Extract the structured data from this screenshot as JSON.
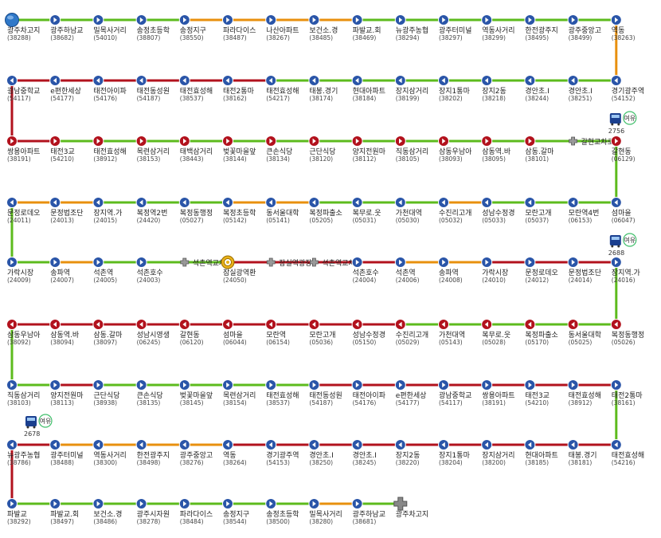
{
  "colors": {
    "green": "#5dbb1d",
    "orange": "#e8900e",
    "red": "#b2121d",
    "blue": "#1a64c8",
    "nav": "#2a55a8"
  },
  "buses": [
    {
      "number": "2756",
      "badge": "여유"
    },
    {
      "number": "2688",
      "badge": "여유"
    },
    {
      "number": "2678",
      "badge": "여유"
    }
  ],
  "rows": [
    {
      "direction": "right",
      "stops": [
        {
          "name": "광주차고지",
          "id": "(38288)",
          "type": "start"
        },
        {
          "name": "광주하남교",
          "id": "(38682)"
        },
        {
          "name": "밀목사거리",
          "id": "(54010)"
        },
        {
          "name": "송정초등학",
          "id": "(38807)"
        },
        {
          "name": "송정지구",
          "id": "(38550)"
        },
        {
          "name": "파라다이스",
          "id": "(38487)"
        },
        {
          "name": "나산아파트",
          "id": "(38267)"
        },
        {
          "name": "보건소.경",
          "id": "(38485)"
        },
        {
          "name": "파발교.회",
          "id": "(38469)"
        },
        {
          "name": "뉴광주농협",
          "id": "(38294)"
        },
        {
          "name": "광주터미널",
          "id": "(38297)"
        },
        {
          "name": "역동사거리",
          "id": "(38299)"
        },
        {
          "name": "한전광주지",
          "id": "(38495)"
        },
        {
          "name": "광주중앙고",
          "id": "(38499)"
        },
        {
          "name": "역동",
          "id": "(38263)"
        }
      ]
    },
    {
      "direction": "left",
      "stops": [
        {
          "name": "경기광주역",
          "id": "(54152)"
        },
        {
          "name": "경안초.I",
          "id": "(38251)"
        },
        {
          "name": "경안초.I",
          "id": "(38244)"
        },
        {
          "name": "장지2동",
          "id": "(38218)"
        },
        {
          "name": "장지1통마",
          "id": "(38202)"
        },
        {
          "name": "장지삼거리",
          "id": "(38199)"
        },
        {
          "name": "현대아파트",
          "id": "(38184)"
        },
        {
          "name": "태봉.경기",
          "id": "(38174)"
        },
        {
          "name": "태전효성해",
          "id": "(54217)"
        },
        {
          "name": "태전2통마",
          "id": "(38162)"
        },
        {
          "name": "태전효성해",
          "id": "(38537)"
        },
        {
          "name": "태전동성원",
          "id": "(54187)"
        },
        {
          "name": "태전아이파",
          "id": "(54176)"
        },
        {
          "name": "e편한세상",
          "id": "(54177)"
        },
        {
          "name": "광남중학교",
          "id": "(54117)"
        }
      ]
    },
    {
      "direction": "right",
      "stops": [
        {
          "name": "쌍용아파트",
          "id": "(38191)"
        },
        {
          "name": "태전3교",
          "id": "(54210)"
        },
        {
          "name": "태전효성해",
          "id": "(38912)"
        },
        {
          "name": "목련삼거리",
          "id": "(38153)"
        },
        {
          "name": "태백삼거리",
          "id": "(38443)"
        },
        {
          "name": "벚꽃마을앞",
          "id": "(38144)"
        },
        {
          "name": "큰손식당",
          "id": "(38134)"
        },
        {
          "name": "근단식당",
          "id": "(38120)"
        },
        {
          "name": "양지전원마",
          "id": "(38112)"
        },
        {
          "name": "직동삼거리",
          "id": "(38105)"
        },
        {
          "name": "삼동우남아",
          "id": "(38093)"
        },
        {
          "name": "삼동역.바",
          "id": "(38095)"
        },
        {
          "name": "삼동.갈마",
          "id": "(38101)"
        },
        {
          "name": "갈현교차로",
          "id": "",
          "type": "turn"
        },
        {
          "name": "갈현동",
          "id": "(06129)"
        }
      ]
    },
    {
      "direction": "left",
      "stops": [
        {
          "name": "섬마을",
          "id": "(06047)"
        },
        {
          "name": "모란역4번",
          "id": "(06153)"
        },
        {
          "name": "모란고개",
          "id": "(05037)"
        },
        {
          "name": "성남수정경",
          "id": "(05033)"
        },
        {
          "name": "수진리고개",
          "id": "(05032)"
        },
        {
          "name": "가천대역",
          "id": "(05030)"
        },
        {
          "name": "복무로.웃",
          "id": "(05031)"
        },
        {
          "name": "복정파출소",
          "id": "(05205)"
        },
        {
          "name": "동서울대학",
          "id": "(05141)"
        },
        {
          "name": "복정초등학",
          "id": "(05142)"
        },
        {
          "name": "복정동행정",
          "id": "(05027)"
        },
        {
          "name": "복정역2번",
          "id": "(24420)"
        },
        {
          "name": "장지역.가",
          "id": "(24015)"
        },
        {
          "name": "문정법조단",
          "id": "(24013)"
        },
        {
          "name": "문정로데오",
          "id": "(24011)"
        }
      ]
    },
    {
      "direction": "right",
      "stops": [
        {
          "name": "가락시장",
          "id": "(24009)"
        },
        {
          "name": "송파역",
          "id": "(24007)"
        },
        {
          "name": "석촌역",
          "id": "(24005)"
        },
        {
          "name": "석촌호수",
          "id": "(24003)"
        },
        {
          "name": "석촌역교차",
          "id": "",
          "type": "turn"
        },
        {
          "name": "잠실광역환",
          "id": "(24050)",
          "type": "turnaround"
        },
        {
          "name": "잠실역광장",
          "id": "",
          "type": "turn"
        },
        {
          "name": "석촌역교차",
          "id": "",
          "type": "turn"
        },
        {
          "name": "석촌호수",
          "id": "(24004)"
        },
        {
          "name": "석촌역",
          "id": "(24006)"
        },
        {
          "name": "송파역",
          "id": "(24008)"
        },
        {
          "name": "가락시장",
          "id": "(24010)"
        },
        {
          "name": "문정로데오",
          "id": "(24012)"
        },
        {
          "name": "문정법조단",
          "id": "(24014)"
        },
        {
          "name": "장지역.가",
          "id": "(24016)"
        }
      ]
    },
    {
      "direction": "left",
      "stops": [
        {
          "name": "복정동행정",
          "id": "(05026)"
        },
        {
          "name": "동서울대학",
          "id": "(05025)"
        },
        {
          "name": "복정파출소",
          "id": "(05170)"
        },
        {
          "name": "복무로.웃",
          "id": "(05028)"
        },
        {
          "name": "가천대역",
          "id": "(05143)"
        },
        {
          "name": "수진리고개",
          "id": "(05029)"
        },
        {
          "name": "성남수정경",
          "id": "(05150)"
        },
        {
          "name": "모란고개",
          "id": "(05036)"
        },
        {
          "name": "모란역",
          "id": "(06154)"
        },
        {
          "name": "섬마을",
          "id": "(06044)"
        },
        {
          "name": "갈현동",
          "id": "(06120)"
        },
        {
          "name": "성남시영생",
          "id": "(06245)"
        },
        {
          "name": "삼동.갈마",
          "id": "(38097)"
        },
        {
          "name": "삼동역.바",
          "id": "(38094)"
        },
        {
          "name": "삼동우남아",
          "id": "(38092)"
        }
      ]
    },
    {
      "direction": "right",
      "stops": [
        {
          "name": "직동삼거리",
          "id": "(38103)"
        },
        {
          "name": "양지전원마",
          "id": "(38113)"
        },
        {
          "name": "근단식당",
          "id": "(38938)"
        },
        {
          "name": "큰손식당",
          "id": "(38135)"
        },
        {
          "name": "벚꽃마을앞",
          "id": "(38145)"
        },
        {
          "name": "목련삼거리",
          "id": "(38154)"
        },
        {
          "name": "태전효성해",
          "id": "(38537)"
        },
        {
          "name": "태전동성원",
          "id": "(54187)"
        },
        {
          "name": "태전아이파",
          "id": "(54176)"
        },
        {
          "name": "e편한세상",
          "id": "(54177)"
        },
        {
          "name": "광남중학교",
          "id": "(54117)"
        },
        {
          "name": "쌍용아파트",
          "id": "(38191)"
        },
        {
          "name": "태전3교",
          "id": "(54210)"
        },
        {
          "name": "태전효성해",
          "id": "(38912)"
        },
        {
          "name": "태전2통마",
          "id": "(38161)"
        }
      ]
    },
    {
      "direction": "left",
      "stops": [
        {
          "name": "태전효성해",
          "id": "(54216)"
        },
        {
          "name": "태봉.경기",
          "id": "(38181)"
        },
        {
          "name": "현대아파트",
          "id": "(38185)"
        },
        {
          "name": "장지삼거리",
          "id": "(38200)"
        },
        {
          "name": "장지1통마",
          "id": "(38204)"
        },
        {
          "name": "장지2동",
          "id": "(38220)"
        },
        {
          "name": "경안초.I",
          "id": "(38245)"
        },
        {
          "name": "경안초.I",
          "id": "(38250)"
        },
        {
          "name": "경기광주역",
          "id": "(54153)"
        },
        {
          "name": "역동",
          "id": "(38264)"
        },
        {
          "name": "광주중앙고",
          "id": "(38276)"
        },
        {
          "name": "한전광주지",
          "id": "(38498)"
        },
        {
          "name": "역동사거리",
          "id": "(38300)"
        },
        {
          "name": "광주터미널",
          "id": "(38488)"
        },
        {
          "name": "뉴광주농협",
          "id": "(38786)"
        }
      ]
    },
    {
      "direction": "right",
      "stops": [
        {
          "name": "파발교",
          "id": "(38292)"
        },
        {
          "name": "파발교.회",
          "id": "(38497)"
        },
        {
          "name": "보건소.경",
          "id": "(38486)"
        },
        {
          "name": "광주시자원",
          "id": "(38278)"
        },
        {
          "name": "파라다이스",
          "id": "(38484)"
        },
        {
          "name": "송정지구",
          "id": "(38544)"
        },
        {
          "name": "송정초등학",
          "id": "(38500)"
        },
        {
          "name": "밀목사거리",
          "id": "(38280)"
        },
        {
          "name": "광주하남교",
          "id": "(38681)"
        },
        {
          "name": "광주차고지",
          "id": "",
          "type": "end"
        }
      ]
    }
  ],
  "segments": [
    [
      "green",
      "green",
      "green",
      "green",
      "orange",
      "orange",
      "orange",
      "orange",
      "green",
      "green",
      "green",
      "green",
      "green",
      "green"
    ],
    [
      "green",
      "green",
      "green",
      "green",
      "green",
      "green",
      "green",
      "green",
      "red",
      "red",
      "red",
      "red",
      "red",
      "red"
    ],
    [
      "red",
      "green",
      "green",
      "green",
      "green",
      "green",
      "green",
      "green",
      "green",
      "green",
      "green",
      "green",
      "green",
      "green"
    ],
    [
      "green",
      "green",
      "green",
      "orange",
      "green",
      "green",
      "green",
      "orange",
      "orange",
      "green",
      "green",
      "green",
      "orange",
      "orange"
    ],
    [
      "green",
      "orange",
      "green",
      "green",
      "green",
      "red",
      "red",
      "red",
      "red",
      "orange",
      "orange",
      "red",
      "red",
      "red"
    ],
    [
      "green",
      "green",
      "green",
      "green",
      "green",
      "red",
      "red",
      "red",
      "red",
      "red",
      "red",
      "red",
      "red",
      "red"
    ],
    [
      "green",
      "red",
      "green",
      "green",
      "green",
      "green",
      "green",
      "red",
      "red",
      "red",
      "red",
      "red",
      "red",
      "red"
    ],
    [
      "red",
      "red",
      "red",
      "red",
      "red",
      "red",
      "red",
      "red",
      "red",
      "orange",
      "orange",
      "orange",
      "orange",
      "red"
    ],
    [
      "green",
      "green",
      "green",
      "green",
      "green",
      "green",
      "green",
      "orange",
      "green"
    ]
  ],
  "connectors": [
    "orange",
    "red",
    "green",
    "green",
    "green",
    "green",
    "green",
    "red"
  ]
}
